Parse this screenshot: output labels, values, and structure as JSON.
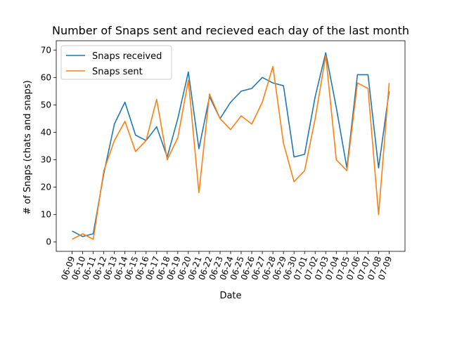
{
  "chart_data": {
    "type": "line",
    "title": "Number of Snaps sent and recieved each day of the last month",
    "xlabel": "Date",
    "ylabel": "# of Snaps (chats and snaps)",
    "categories": [
      "06-09",
      "06-10",
      "06-11",
      "06-12",
      "06-13",
      "06-14",
      "06-15",
      "06-16",
      "06-17",
      "06-18",
      "06-19",
      "06-20",
      "06-21",
      "06-22",
      "06-23",
      "06-24",
      "06-25",
      "06-26",
      "06-27",
      "06-28",
      "06-29",
      "06-30",
      "07-01",
      "07-02",
      "07-03",
      "07-04",
      "07-05",
      "07-06",
      "07-07",
      "07-08",
      "07-09"
    ],
    "ylim": [
      -3.4,
      73.4
    ],
    "yticks": [
      0,
      10,
      20,
      30,
      40,
      50,
      60,
      70
    ],
    "grid": false,
    "legend_position": "upper-left",
    "series": [
      {
        "name": "Snaps received",
        "color": "#1f77b4",
        "values": [
          4,
          2,
          3,
          25,
          43,
          51,
          39,
          37,
          42,
          31,
          45,
          62,
          34,
          53,
          45,
          51,
          55,
          56,
          60,
          58,
          57,
          31,
          32,
          53,
          69,
          49,
          27,
          61,
          61,
          27,
          55
        ]
      },
      {
        "name": "Snaps sent",
        "color": "#ff7f0e",
        "values": [
          1,
          3,
          1,
          26,
          37,
          44,
          33,
          37,
          52,
          30,
          38,
          59,
          18,
          54,
          45,
          41,
          46,
          43,
          51,
          64,
          36,
          22,
          26,
          45,
          68,
          30,
          26,
          58,
          56,
          10,
          58
        ]
      }
    ]
  }
}
